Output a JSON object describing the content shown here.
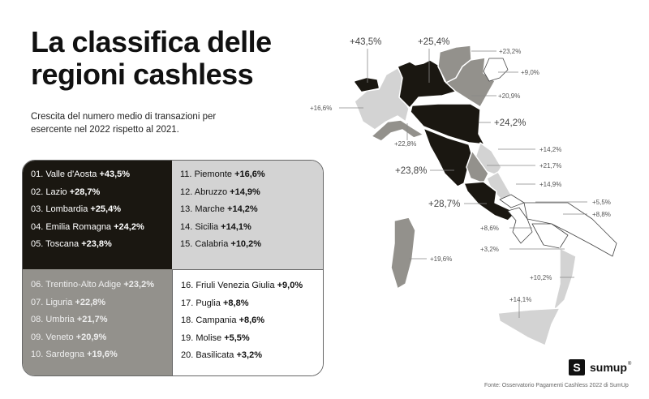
{
  "title": "La classifica delle regioni cashless",
  "subtitle": "Crescita del numero medio di transazioni per esercente nel 2022 rispetto al 2021.",
  "ranking": [
    {
      "label": "01. Valle d'Aosta",
      "value": "+43,5%"
    },
    {
      "label": "02. Lazio",
      "value": "+28,7%"
    },
    {
      "label": "03. Lombardia",
      "value": "+25,4%"
    },
    {
      "label": "04. Emilia Romagna",
      "value": "+24,2%"
    },
    {
      "label": "05. Toscana",
      "value": "+23,8%"
    },
    {
      "label": "06. Trentino-Alto Adige",
      "value": "+23,2%"
    },
    {
      "label": "07. Liguria",
      "value": "+22,8%"
    },
    {
      "label": "08. Umbria",
      "value": "+21,7%"
    },
    {
      "label": "09. Veneto",
      "value": "+20,9%"
    },
    {
      "label": "10. Sardegna",
      "value": "+19,6%"
    },
    {
      "label": "11. Piemonte",
      "value": "+16,6%"
    },
    {
      "label": "12. Abruzzo",
      "value": "+14,9%"
    },
    {
      "label": "13. Marche",
      "value": "+14,2%"
    },
    {
      "label": "14. Sicilia",
      "value": "+14,1%"
    },
    {
      "label": "15. Calabria",
      "value": "+10,2%"
    },
    {
      "label": "16. Friuli Venezia Giulia",
      "value": "+9,0%"
    },
    {
      "label": "17. Puglia",
      "value": "+8,8%"
    },
    {
      "label": "18. Campania",
      "value": "+8,6%"
    },
    {
      "label": "19. Molise",
      "value": "+5,5%"
    },
    {
      "label": "20. Basilicata",
      "value": "+3,2%"
    }
  ],
  "tier_colors": [
    "#1a1711",
    "#93918c",
    "#d3d3d3",
    "#ffffff"
  ],
  "logo": {
    "icon": "sumup-logo-icon",
    "text": "sumup",
    "mark": "®"
  },
  "source": "Fonte: Osservatorio Pagamenti Cashless 2022 di SumUp"
}
